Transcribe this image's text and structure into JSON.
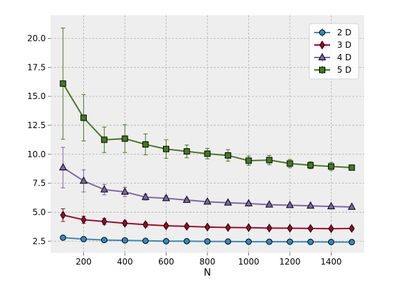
{
  "chart_data": {
    "type": "line",
    "xlabel": "N",
    "ylabel": "",
    "xlim": [
      40,
      1560
    ],
    "ylim": [
      1.5,
      22.0
    ],
    "x_ticks": [
      200,
      400,
      600,
      800,
      1000,
      1200,
      1400
    ],
    "y_ticks": [
      2.5,
      5.0,
      7.5,
      10.0,
      12.5,
      15.0,
      17.5,
      20.0
    ],
    "grid": true,
    "legend_position": "top-right",
    "x": [
      100,
      200,
      300,
      400,
      500,
      600,
      700,
      800,
      900,
      1000,
      1100,
      1200,
      1300,
      1400,
      1500
    ],
    "series": [
      {
        "name": "2 D",
        "color": "#348ABD",
        "marker": "circle",
        "values": [
          2.8,
          2.68,
          2.6,
          2.57,
          2.53,
          2.5,
          2.5,
          2.48,
          2.47,
          2.46,
          2.45,
          2.45,
          2.44,
          2.43,
          2.42
        ],
        "errors": [
          0.12,
          0.08,
          0.06,
          0.05,
          0.05,
          0.04,
          0.04,
          0.04,
          0.04,
          0.03,
          0.03,
          0.03,
          0.03,
          0.03,
          0.03
        ]
      },
      {
        "name": "3 D",
        "color": "#A60628",
        "marker": "diamond",
        "values": [
          4.75,
          4.35,
          4.2,
          4.05,
          3.93,
          3.83,
          3.78,
          3.72,
          3.68,
          3.67,
          3.63,
          3.62,
          3.6,
          3.58,
          3.6
        ],
        "errors": [
          0.55,
          0.3,
          0.25,
          0.2,
          0.18,
          0.15,
          0.14,
          0.13,
          0.12,
          0.12,
          0.12,
          0.12,
          0.12,
          0.12,
          0.12
        ]
      },
      {
        "name": "4 D",
        "color": "#7A68A6",
        "marker": "triangle",
        "values": [
          8.85,
          7.7,
          6.95,
          6.75,
          6.3,
          6.2,
          6.05,
          5.9,
          5.82,
          5.75,
          5.65,
          5.6,
          5.55,
          5.5,
          5.45
        ],
        "errors": [
          1.75,
          0.95,
          0.45,
          0.4,
          0.25,
          0.2,
          0.15,
          0.15,
          0.13,
          0.12,
          0.12,
          0.1,
          0.1,
          0.1,
          0.1
        ]
      },
      {
        "name": "5 D",
        "color": "#467821",
        "marker": "square",
        "values": [
          16.1,
          13.15,
          11.25,
          11.35,
          10.85,
          10.45,
          10.25,
          10.05,
          9.9,
          9.45,
          9.5,
          9.2,
          9.05,
          8.95,
          8.85
        ],
        "errors": [
          4.8,
          2.0,
          1.1,
          1.2,
          0.9,
          0.8,
          0.55,
          0.45,
          0.5,
          0.4,
          0.4,
          0.35,
          0.3,
          0.35,
          0.2
        ]
      }
    ]
  }
}
